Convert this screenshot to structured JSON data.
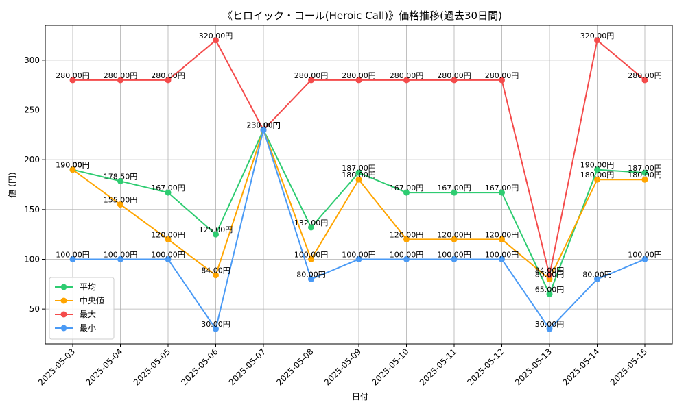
{
  "chart_data": {
    "type": "line",
    "title": "《ヒロイック・コール(Heroic Call)》価格推移(過去30日間)",
    "xlabel": "日付",
    "ylabel": "値 (円)",
    "categories": [
      "2025-05-03",
      "2025-05-04",
      "2025-05-05",
      "2025-05-06",
      "2025-05-07",
      "2025-05-08",
      "2025-05-09",
      "2025-05-10",
      "2025-05-11",
      "2025-05-12",
      "2025-05-13",
      "2025-05-14",
      "2025-05-15"
    ],
    "ylim": [
      15,
      335
    ],
    "yticks": [
      50,
      100,
      150,
      200,
      250,
      300
    ],
    "grid": true,
    "legend_position": "lower-left",
    "value_suffix": "円",
    "series": [
      {
        "name": "平均",
        "color": "#2ecc71",
        "values": [
          190,
          178.5,
          167,
          125,
          230,
          132,
          187,
          167,
          167,
          167,
          65,
          190,
          187
        ]
      },
      {
        "name": "中央値",
        "color": "#ffa500",
        "values": [
          190,
          155,
          120,
          84,
          230,
          100,
          180,
          120,
          120,
          120,
          80,
          180,
          180
        ]
      },
      {
        "name": "最大",
        "color": "#f44b4b",
        "values": [
          280,
          280,
          280,
          320,
          230,
          280,
          280,
          280,
          280,
          280,
          84,
          320,
          280
        ]
      },
      {
        "name": "最小",
        "color": "#4a9af5",
        "values": [
          100,
          100,
          100,
          30,
          230,
          80,
          100,
          100,
          100,
          100,
          30,
          80,
          100
        ]
      }
    ]
  }
}
